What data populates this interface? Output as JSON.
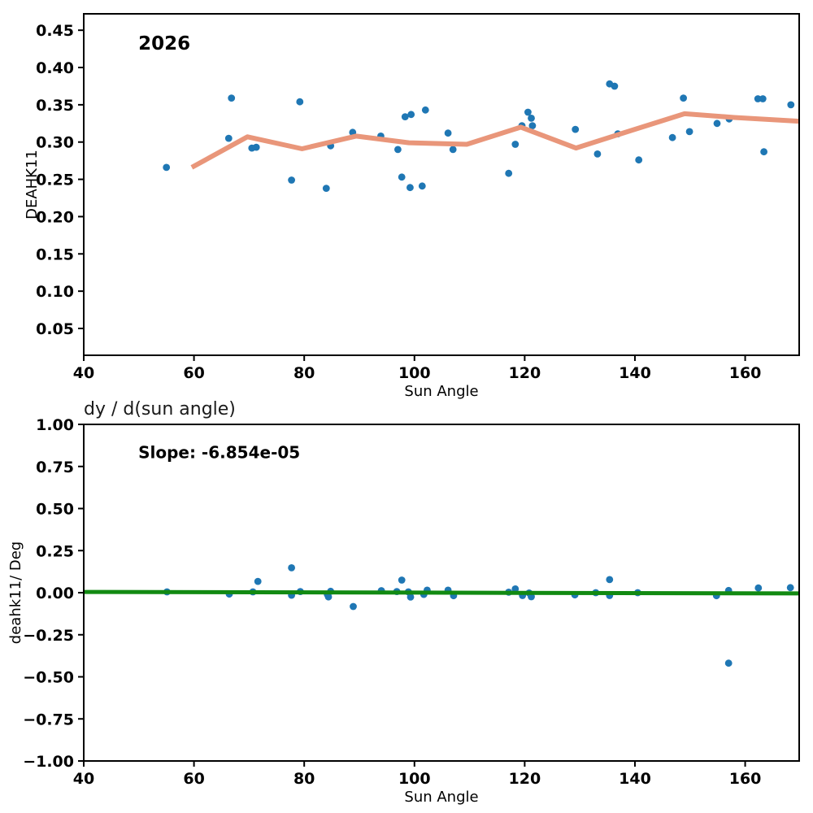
{
  "figure": {
    "background": "#ffffff",
    "xlabel_shared": "Sun Angle"
  },
  "colors": {
    "scatter_blue": "#1f77b4",
    "trend_salmon": "#e9967a",
    "fit_green": "#128a12",
    "spine_black": "#000000",
    "title_gray": "#1a1a1a"
  },
  "chart_data": [
    {
      "type": "scatter",
      "title": "",
      "xlabel": "Sun Angle",
      "ylabel": "DEAHK11",
      "xlim": [
        40,
        169.8
      ],
      "ylim": [
        0.014,
        0.472
      ],
      "grid": false,
      "legend": null,
      "annotations": [
        {
          "text": "2026",
          "x": 49.9,
          "y": 0.424,
          "size": 23
        }
      ],
      "xticks": {
        "values": [
          40,
          60,
          80,
          100,
          120,
          140,
          160
        ],
        "labels": [
          "40",
          "60",
          "80",
          "100",
          "120",
          "140",
          "160"
        ]
      },
      "yticks": {
        "values": [
          0.05,
          0.1,
          0.15,
          0.2,
          0.25,
          0.3,
          0.35,
          0.4,
          0.45
        ],
        "labels": [
          "0.05",
          "0.10",
          "0.15",
          "0.20",
          "0.25",
          "0.30",
          "0.35",
          "0.40",
          "0.45"
        ]
      },
      "series": [
        {
          "name": "deahk11-points",
          "kind": "scatter",
          "color": "#1f77b4",
          "marker_radius": 4.4,
          "points": [
            [
              55.0,
              0.266
            ],
            [
              66.3,
              0.305
            ],
            [
              66.8,
              0.359
            ],
            [
              70.5,
              0.292
            ],
            [
              71.3,
              0.293
            ],
            [
              77.7,
              0.249
            ],
            [
              79.2,
              0.354
            ],
            [
              84.0,
              0.238
            ],
            [
              84.8,
              0.295
            ],
            [
              88.8,
              0.313
            ],
            [
              93.9,
              0.308
            ],
            [
              97.0,
              0.29
            ],
            [
              97.7,
              0.253
            ],
            [
              98.3,
              0.334
            ],
            [
              99.4,
              0.337
            ],
            [
              99.2,
              0.239
            ],
            [
              101.4,
              0.241
            ],
            [
              102.0,
              0.343
            ],
            [
              106.1,
              0.312
            ],
            [
              107.0,
              0.29
            ],
            [
              117.1,
              0.258
            ],
            [
              118.3,
              0.297
            ],
            [
              119.5,
              0.322
            ],
            [
              120.6,
              0.34
            ],
            [
              121.2,
              0.332
            ],
            [
              121.4,
              0.322
            ],
            [
              129.2,
              0.317
            ],
            [
              133.2,
              0.284
            ],
            [
              135.4,
              0.378
            ],
            [
              136.3,
              0.375
            ],
            [
              136.9,
              0.311
            ],
            [
              140.7,
              0.276
            ],
            [
              146.8,
              0.306
            ],
            [
              148.8,
              0.359
            ],
            [
              149.9,
              0.314
            ],
            [
              154.9,
              0.325
            ],
            [
              157.1,
              0.331
            ],
            [
              162.3,
              0.358
            ],
            [
              163.2,
              0.358
            ],
            [
              163.4,
              0.287
            ],
            [
              168.3,
              0.35
            ]
          ]
        },
        {
          "name": "trend-line",
          "kind": "line",
          "color": "#e9967a",
          "width": 6,
          "points": [
            [
              59.6,
              0.266
            ],
            [
              69.7,
              0.307
            ],
            [
              79.6,
              0.291
            ],
            [
              89.4,
              0.308
            ],
            [
              99.0,
              0.299
            ],
            [
              109.5,
              0.297
            ],
            [
              119.3,
              0.32
            ],
            [
              129.3,
              0.292
            ],
            [
              139.5,
              0.316
            ],
            [
              149.0,
              0.338
            ],
            [
              158.0,
              0.333
            ],
            [
              169.8,
              0.328
            ]
          ]
        }
      ]
    },
    {
      "type": "scatter",
      "title": "dy / d(sun angle)",
      "xlabel": "Sun Angle",
      "ylabel": "deahk11/ Deg",
      "xlim": [
        40,
        169.8
      ],
      "ylim": [
        -1.0,
        1.0
      ],
      "grid": false,
      "legend": null,
      "annotations": [
        {
          "text": "Slope: -6.854e-05",
          "x": 49.9,
          "y": 0.8,
          "size": 20
        }
      ],
      "xticks": {
        "values": [
          40,
          60,
          80,
          100,
          120,
          140,
          160
        ],
        "labels": [
          "40",
          "60",
          "80",
          "100",
          "120",
          "140",
          "160"
        ]
      },
      "yticks": {
        "values": [
          -1.0,
          -0.75,
          -0.5,
          -0.25,
          0.0,
          0.25,
          0.5,
          0.75,
          1.0
        ],
        "labels": [
          "−1.00",
          "−0.75",
          "−0.50",
          "−0.25",
          "0.00",
          "0.25",
          "0.50",
          "0.75",
          "1.00"
        ]
      },
      "series": [
        {
          "name": "derivative-points",
          "kind": "scatter",
          "color": "#1f77b4",
          "marker_radius": 4.4,
          "points": [
            [
              55.1,
              0.005
            ],
            [
              66.4,
              -0.008
            ],
            [
              70.7,
              0.005
            ],
            [
              71.6,
              0.067
            ],
            [
              77.7,
              0.148
            ],
            [
              77.7,
              -0.015
            ],
            [
              79.3,
              0.007
            ],
            [
              84.2,
              -0.01
            ],
            [
              84.4,
              -0.025
            ],
            [
              84.8,
              0.008
            ],
            [
              88.9,
              -0.082
            ],
            [
              94.0,
              0.012
            ],
            [
              96.8,
              0.007
            ],
            [
              97.7,
              0.075
            ],
            [
              98.9,
              0.005
            ],
            [
              99.3,
              -0.026
            ],
            [
              101.7,
              -0.01
            ],
            [
              102.3,
              0.015
            ],
            [
              106.1,
              0.015
            ],
            [
              107.1,
              -0.018
            ],
            [
              117.1,
              0.003
            ],
            [
              118.3,
              0.022
            ],
            [
              119.6,
              -0.017
            ],
            [
              120.8,
              -0.002
            ],
            [
              121.2,
              -0.024
            ],
            [
              129.1,
              -0.013
            ],
            [
              132.9,
              0.0
            ],
            [
              135.4,
              0.078
            ],
            [
              135.4,
              -0.017
            ],
            [
              140.5,
              0.0
            ],
            [
              154.8,
              -0.018
            ],
            [
              157.0,
              0.013
            ],
            [
              157.0,
              -0.419
            ],
            [
              162.4,
              0.028
            ],
            [
              168.2,
              0.03
            ]
          ]
        },
        {
          "name": "fit-line",
          "kind": "line",
          "color": "#128a12",
          "width": 5,
          "points": [
            [
              40.0,
              0.0045
            ],
            [
              169.8,
              -0.0045
            ]
          ]
        }
      ]
    }
  ]
}
